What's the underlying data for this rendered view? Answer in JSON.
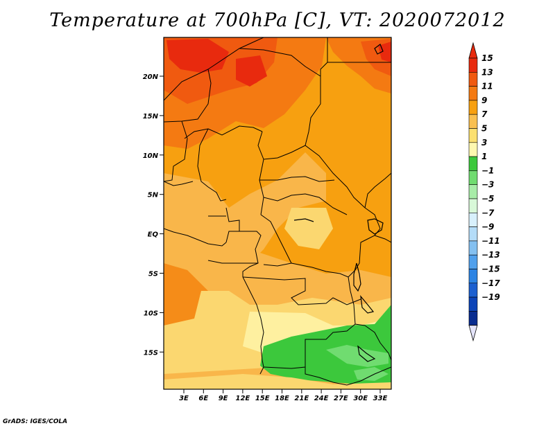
{
  "title": "Temperature at 700hPa [C], VT: 2020072012",
  "credit": "GrADS: IGES/COLA",
  "map": {
    "lat_labels": [
      "20N",
      "15N",
      "10N",
      "5N",
      "EQ",
      "5S",
      "10S",
      "15S"
    ],
    "lon_labels": [
      "3E",
      "6E",
      "9E",
      "12E",
      "15E",
      "18E",
      "21E",
      "24E",
      "27E",
      "30E",
      "33E"
    ]
  },
  "colorbar": {
    "labels": [
      "15",
      "13",
      "11",
      "9",
      "7",
      "5",
      "3",
      "1",
      "−1",
      "−3",
      "−5",
      "−7",
      "−9",
      "−11",
      "−13",
      "−15",
      "−17",
      "−19"
    ],
    "colors": [
      "#e82a0e",
      "#f05a10",
      "#f47a12",
      "#f7a010",
      "#f9c050",
      "#fbe070",
      "#fef8b0",
      "#3cc83c",
      "#70dc70",
      "#a8eca8",
      "#d8f8d8",
      "#d8f0fc",
      "#b4dcf8",
      "#84c0f0",
      "#50a0ec",
      "#2c84e4",
      "#1c60d0",
      "#0c44b8",
      "#082c90",
      "#041a6a"
    ],
    "top_color": "#e82a0e",
    "bottom_color": "#e4e4fa"
  }
}
